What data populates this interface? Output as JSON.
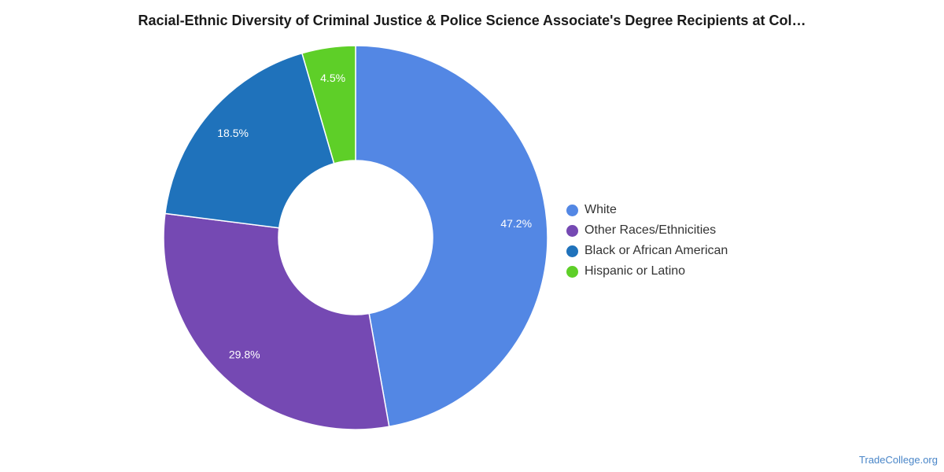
{
  "chart_data": {
    "type": "pie",
    "title": "Racial-Ethnic Diversity of Criminal Justice & Police Science Associate's Degree Recipients at Col…",
    "donut": true,
    "legend_position": "right",
    "slices": [
      {
        "label": "White",
        "value": 47.2,
        "display": "47.2%",
        "color": "#5387e4"
      },
      {
        "label": "Other Races/Ethnicities",
        "value": 29.8,
        "display": "29.8%",
        "color": "#7549b3"
      },
      {
        "label": "Black or African American",
        "value": 18.5,
        "display": "18.5%",
        "color": "#1f72bb"
      },
      {
        "label": "Hispanic or Latino",
        "value": 4.5,
        "display": "4.5%",
        "color": "#5ecf28"
      }
    ]
  },
  "watermark": "TradeCollege.org"
}
